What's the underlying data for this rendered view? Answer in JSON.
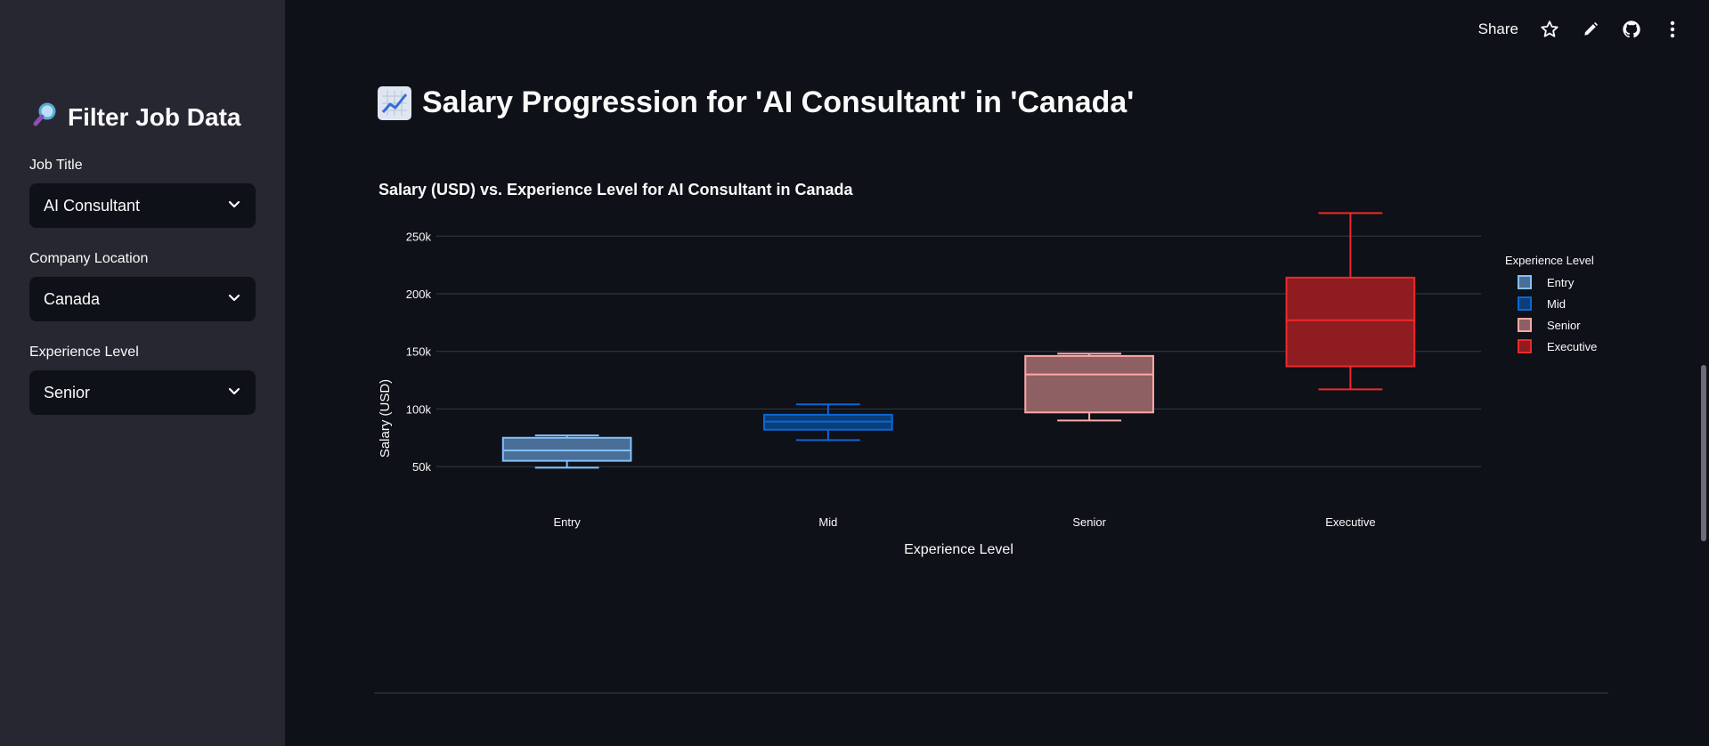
{
  "sidebar": {
    "title": "Filter Job Data",
    "title_icon": "magnifier-icon",
    "filters": [
      {
        "label": "Job Title",
        "value": "AI Consultant"
      },
      {
        "label": "Company Location",
        "value": "Canada"
      },
      {
        "label": "Experience Level",
        "value": "Senior"
      }
    ]
  },
  "topbar": {
    "share_label": "Share",
    "icons": [
      "star-icon",
      "pencil-icon",
      "github-icon",
      "more-vert-icon"
    ]
  },
  "main": {
    "title": "Salary Progression for 'AI Consultant' in 'Canada'",
    "title_icon": "chart-increasing-icon"
  },
  "chart_data": {
    "type": "box",
    "title": "Salary (USD) vs. Experience Level for AI Consultant in Canada",
    "xlabel": "Experience Level",
    "ylabel": "Salary (USD)",
    "ylim": [
      30000,
      285000
    ],
    "yticks": [
      50000,
      100000,
      150000,
      200000,
      250000
    ],
    "ytick_labels": [
      "50k",
      "100k",
      "150k",
      "200k",
      "250k"
    ],
    "grid": true,
    "legend_title": "Experience Level",
    "legend_position": "top-right",
    "categories": [
      "Entry",
      "Mid",
      "Senior",
      "Executive"
    ],
    "series": [
      {
        "name": "Entry",
        "min": 49000,
        "q1": 55000,
        "median": 64000,
        "q3": 75000,
        "max": 77000,
        "color": "#82c0ff",
        "fill": "#4a6e96"
      },
      {
        "name": "Mid",
        "min": 73000,
        "q1": 82000,
        "median": 89000,
        "q3": 95000,
        "max": 104000,
        "color": "#0a67d6",
        "fill": "#0b3d78"
      },
      {
        "name": "Senior",
        "min": 90000,
        "q1": 97000,
        "median": 130000,
        "q3": 146000,
        "max": 148000,
        "color": "#ffa8a8",
        "fill": "#8e6063"
      },
      {
        "name": "Executive",
        "min": 117000,
        "q1": 137000,
        "median": 177000,
        "q3": 214000,
        "max": 270000,
        "color": "#ee2a2a",
        "fill": "#8e1c21"
      }
    ]
  }
}
